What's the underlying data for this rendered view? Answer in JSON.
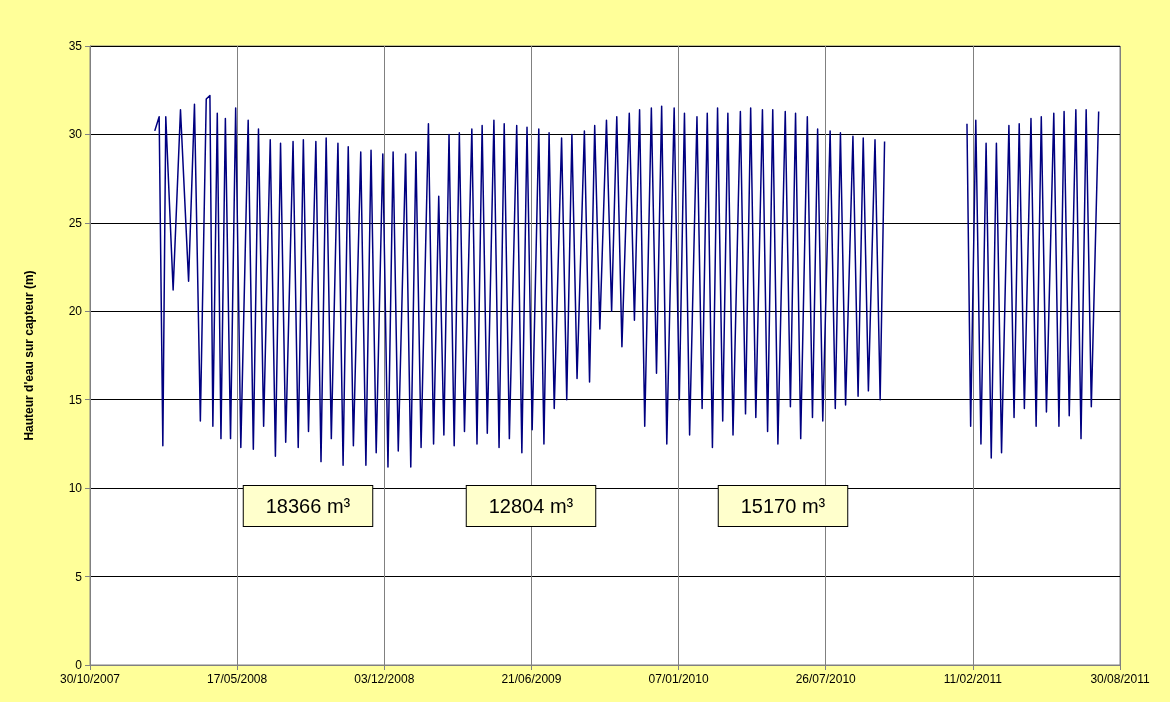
{
  "chart_data": {
    "type": "line",
    "ylabel": "Hauteur d'eau sur capteur (m)",
    "x": [
      "2008-01-26",
      "2008-02-01",
      "2008-02-06",
      "2008-02-10",
      "2008-02-20",
      "2008-03-01",
      "2008-03-12",
      "2008-03-20",
      "2008-03-28",
      "2008-04-05",
      "2008-04-10",
      "2008-04-14",
      "2008-04-20",
      "2008-04-25",
      "2008-05-01",
      "2008-05-08",
      "2008-05-15",
      "2008-05-22",
      "2008-06-01",
      "2008-06-08",
      "2008-06-15",
      "2008-06-22",
      "2008-07-01",
      "2008-07-08",
      "2008-07-15",
      "2008-07-22",
      "2008-08-01",
      "2008-08-08",
      "2008-08-15",
      "2008-08-22",
      "2008-09-01",
      "2008-09-08",
      "2008-09-15",
      "2008-09-22",
      "2008-10-01",
      "2008-10-08",
      "2008-10-15",
      "2008-10-22",
      "2008-11-01",
      "2008-11-08",
      "2008-11-15",
      "2008-11-22",
      "2008-12-01",
      "2008-12-08",
      "2008-12-15",
      "2008-12-22",
      "2009-01-01",
      "2009-01-08",
      "2009-01-15",
      "2009-01-22",
      "2009-02-01",
      "2009-02-08",
      "2009-02-15",
      "2009-02-22",
      "2009-03-01",
      "2009-03-08",
      "2009-03-15",
      "2009-03-22",
      "2009-04-01",
      "2009-04-08",
      "2009-04-15",
      "2009-04-22",
      "2009-05-01",
      "2009-05-08",
      "2009-05-15",
      "2009-05-22",
      "2009-06-01",
      "2009-06-08",
      "2009-06-15",
      "2009-06-22",
      "2009-07-01",
      "2009-07-08",
      "2009-07-15",
      "2009-07-22",
      "2009-08-01",
      "2009-08-08",
      "2009-08-15",
      "2009-08-22",
      "2009-09-01",
      "2009-09-08",
      "2009-09-15",
      "2009-09-22",
      "2009-10-01",
      "2009-10-08",
      "2009-10-15",
      "2009-10-22",
      "2009-11-01",
      "2009-11-08",
      "2009-11-15",
      "2009-11-22",
      "2009-12-01",
      "2009-12-08",
      "2009-12-15",
      "2009-12-22",
      "2010-01-01",
      "2010-01-08",
      "2010-01-15",
      "2010-01-22",
      "2010-02-01",
      "2010-02-08",
      "2010-02-15",
      "2010-02-22",
      "2010-03-01",
      "2010-03-08",
      "2010-03-15",
      "2010-03-22",
      "2010-04-01",
      "2010-04-08",
      "2010-04-15",
      "2010-04-22",
      "2010-05-01",
      "2010-05-08",
      "2010-05-15",
      "2010-05-22",
      "2010-06-01",
      "2010-06-08",
      "2010-06-15",
      "2010-06-22",
      "2010-07-01",
      "2010-07-08",
      "2010-07-15",
      "2010-07-22",
      "2010-08-01",
      "2010-08-08",
      "2010-08-15",
      "2010-08-22",
      "2010-09-01",
      "2010-09-08",
      "2010-09-15",
      "2010-09-22",
      "2010-10-01",
      "2010-10-08",
      "2010-10-14",
      "2010-12-01",
      "2011-02-03",
      "2011-02-08",
      "2011-02-15",
      "2011-02-22",
      "2011-03-01",
      "2011-03-08",
      "2011-03-15",
      "2011-03-22",
      "2011-04-01",
      "2011-04-08",
      "2011-04-15",
      "2011-04-22",
      "2011-05-01",
      "2011-05-08",
      "2011-05-15",
      "2011-05-22",
      "2011-06-01",
      "2011-06-08",
      "2011-06-15",
      "2011-06-22",
      "2011-07-01",
      "2011-07-08",
      "2011-07-15",
      "2011-07-22",
      "2011-08-01"
    ],
    "series": [
      {
        "color": "#000080",
        "values": [
          30.2,
          31,
          12.4,
          31,
          21.2,
          31.4,
          21.7,
          31.7,
          13.8,
          32,
          32.2,
          13.5,
          31.2,
          12.8,
          30.9,
          12.8,
          31.5,
          12.3,
          30.8,
          12.2,
          30.3,
          13.5,
          29.7,
          11.8,
          29.5,
          12.6,
          29.6,
          12.3,
          29.7,
          13.2,
          29.6,
          11.5,
          29.8,
          12.8,
          29.5,
          11.3,
          29.3,
          12.4,
          29,
          11.3,
          29.1,
          12,
          28.9,
          11.2,
          29,
          12.1,
          28.9,
          11.2,
          29,
          12.3,
          30.6,
          12.5,
          26.5,
          13,
          30,
          12.4,
          30.1,
          13.2,
          30.3,
          12.5,
          30.5,
          13.1,
          30.8,
          12.3,
          30.6,
          12.8,
          30.5,
          12,
          30.4,
          13.3,
          30.3,
          12.5,
          30.1,
          14.5,
          29.8,
          15,
          30,
          16.2,
          30.2,
          16,
          30.5,
          19,
          30.8,
          20,
          31,
          18,
          31.2,
          19.5,
          31.4,
          13.5,
          31.5,
          16.5,
          31.6,
          12.5,
          31.5,
          15,
          31.2,
          13,
          31,
          14.5,
          31.2,
          12.3,
          31.5,
          13.8,
          31.2,
          13,
          31.3,
          14.2,
          31.5,
          14,
          31.4,
          13.2,
          31.4,
          12.5,
          31.3,
          14.6,
          31.2,
          12.8,
          31,
          14,
          30.3,
          13.8,
          30.2,
          14.5,
          30.1,
          14.7,
          29.9,
          15.2,
          29.8,
          15.5,
          29.7,
          15,
          29.6,
          null,
          30.6,
          13.5,
          30.8,
          12.5,
          29.5,
          11.7,
          29.5,
          12,
          30.5,
          14,
          30.6,
          14.5,
          30.9,
          13.5,
          31,
          14.3,
          31.2,
          13.5,
          31.3,
          14.1,
          31.4,
          12.8,
          31.4,
          14.6,
          31.3
        ]
      }
    ],
    "xlim": [
      "2007-10-30",
      "2011-08-30"
    ],
    "xticks": [
      {
        "value": "2007-10-30",
        "label": "30/10/2007"
      },
      {
        "value": "2008-05-17",
        "label": "17/05/2008"
      },
      {
        "value": "2008-12-03",
        "label": "03/12/2008"
      },
      {
        "value": "2009-06-21",
        "label": "21/06/2009"
      },
      {
        "value": "2010-01-07",
        "label": "07/01/2010"
      },
      {
        "value": "2010-07-26",
        "label": "26/07/2010"
      },
      {
        "value": "2011-02-11",
        "label": "11/02/2011"
      },
      {
        "value": "2011-08-30",
        "label": "30/08/2011"
      }
    ],
    "ylim": [
      0,
      35
    ],
    "yticks": [
      0,
      5,
      10,
      15,
      20,
      25,
      30,
      35
    ],
    "grid": true,
    "marker": "none",
    "line_style": "solid",
    "annotations": [
      "18366 m³",
      "12804 m³",
      "15170 m³"
    ]
  }
}
